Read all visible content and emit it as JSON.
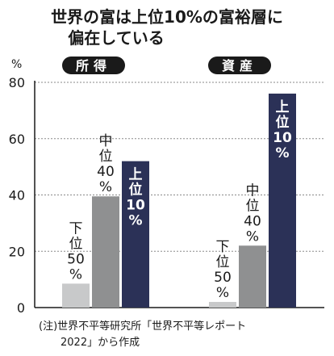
{
  "title_line1": "世界の富は上位10%の富裕層に",
  "title_line2": "偏在している",
  "y_unit": "%",
  "source_line1": "(注)世界不平等研究所「世界不平等レポート",
  "source_line2": "2022」から作成",
  "colors": {
    "bottom": "#c8c9ca",
    "middle": "#8f9091",
    "top": "#2b3157",
    "panel_label_bg": "#1a1a1a",
    "panel_label_text": "#ffffff",
    "grid": "#8a8a8a"
  },
  "chart_data": {
    "type": "bar",
    "ylim": [
      0,
      80
    ],
    "yticks": [
      0,
      20,
      40,
      60,
      80
    ],
    "grid": true,
    "panels": [
      {
        "label": "所得",
        "bars": [
          {
            "group": "下位50%",
            "label_lines": [
              "下",
              "位",
              "50",
              "%"
            ],
            "value": 8.5,
            "tier": "bottom"
          },
          {
            "group": "中位40%",
            "label_lines": [
              "中",
              "位",
              "40",
              "%"
            ],
            "value": 39.5,
            "tier": "middle"
          },
          {
            "group": "上位10%",
            "label_lines": [
              "上",
              "位",
              "10",
              "%"
            ],
            "value": 52,
            "tier": "top"
          }
        ]
      },
      {
        "label": "資産",
        "bars": [
          {
            "group": "下位50%",
            "label_lines": [
              "下",
              "位",
              "50",
              "%"
            ],
            "value": 2,
            "tier": "bottom"
          },
          {
            "group": "中位40%",
            "label_lines": [
              "中",
              "位",
              "40",
              "%"
            ],
            "value": 22,
            "tier": "middle"
          },
          {
            "group": "上位10%",
            "label_lines": [
              "上",
              "位",
              "10",
              "%"
            ],
            "value": 76,
            "tier": "top"
          }
        ]
      }
    ]
  }
}
